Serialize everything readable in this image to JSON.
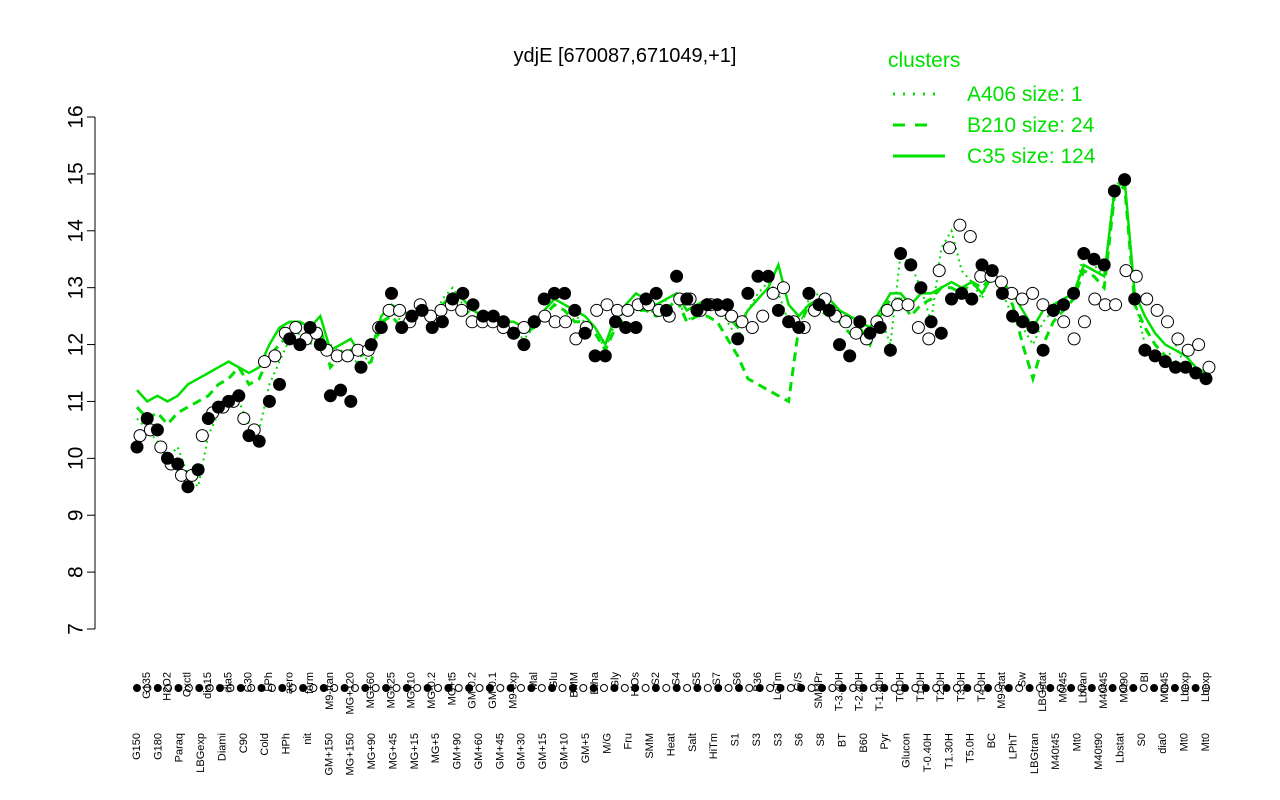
{
  "chart_data": {
    "type": "line",
    "title": "ydjE [670087,671049,+1]",
    "xlabel": "",
    "ylabel": "",
    "ylim": [
      7,
      16
    ],
    "y_ticks": [
      7,
      8,
      9,
      10,
      11,
      12,
      13,
      14,
      15,
      16
    ],
    "grid": false,
    "legend": {
      "title": "clusters",
      "placement": "top-right",
      "entries": [
        {
          "label": "A406 size: 1",
          "style": "dotted"
        },
        {
          "label": "B210 size: 24",
          "style": "dashed"
        },
        {
          "label": "C35 size: 124",
          "style": "solid"
        }
      ]
    },
    "x_labels_upper": [
      "G135",
      "H2O2",
      "Oxctl",
      "dia15",
      "dia5",
      "C30",
      "LPh",
      "aero",
      "ferm",
      "M9-tran",
      "MG+120",
      "MG+60",
      "MG+25",
      "MG+10",
      "MG-0.2",
      "MG+t5",
      "GM-0.2",
      "GM-0.1",
      "M9-exp",
      "Mal",
      "Glu",
      "BMM",
      "Etha",
      "Gly",
      "HiOs",
      "S2",
      "S4",
      "S5",
      "S7",
      "S6",
      "B36",
      "LoTm",
      "G/S",
      "SMMPr",
      "T-3.40H",
      "T-2.40H",
      "T-1.40H",
      "T0.0H",
      "T1.0H",
      "T2.0H",
      "T3.0H",
      "T4.0H",
      "M9-stat",
      "Sw",
      "LBGstat",
      "M0t45",
      "Lbtran",
      "M40t45",
      "M0t90",
      "BI",
      "M0t45",
      "Lbexp",
      "Lbexp"
    ],
    "x_labels_lower": [
      "G150",
      "G180",
      "Paraq",
      "LBGexp",
      "Diami",
      "C90",
      "Cold",
      "HPh",
      "nit",
      "GM+150",
      "MG+150",
      "MG+90",
      "MG+45",
      "MG+15",
      "MG+5",
      "GM+90",
      "GM+60",
      "GM+45",
      "GM+30",
      "GM+15",
      "GM+10",
      "GM+5",
      "M/G",
      "Fru",
      "SMM",
      "Heat",
      "Salt",
      "HiTm",
      "S1",
      "S3",
      "S3",
      "S6",
      "S8",
      "BT",
      "B60",
      "Pyr",
      "Glucon",
      "T-0.40H",
      "T1.30H",
      "T5.0H",
      "BC",
      "LPhT",
      "LBGtran",
      "M40t45",
      "Mt0",
      "M40t90",
      "Lbstat",
      "S0",
      "dia0",
      "Mt0",
      "Mt0"
    ],
    "series": [
      {
        "cluster": "A406",
        "style": "dotted",
        "values": [
          10.7,
          10.5,
          10.3,
          10.0,
          10.2,
          9.7,
          9.5,
          10.4,
          10.8,
          10.9,
          11.0,
          10.6,
          10.5,
          11.3,
          11.7,
          12.1,
          12.2,
          12.0,
          12.2,
          12.0,
          11.9,
          11.8,
          11.6,
          11.9,
          12.3,
          12.6,
          12.4,
          12.5,
          12.7,
          12.4,
          12.8,
          13.0,
          12.7,
          12.5,
          12.4,
          12.4,
          12.3,
          12.2,
          12.1,
          12.3,
          12.6,
          12.8,
          12.7,
          12.5,
          12.4,
          12.3,
          11.9,
          12.4,
          12.6,
          12.8,
          12.7,
          12.5,
          12.8,
          12.9,
          12.4,
          12.6,
          12.8,
          12.7,
          12.4,
          12.1,
          12.6,
          12.9,
          13.1,
          12.9,
          12.4,
          12.3,
          12.8,
          12.9,
          12.6,
          12.4,
          12.3,
          12.2,
          12.1,
          12.5,
          12.0,
          13.6,
          13.4,
          13.0,
          12.4,
          13.7,
          14.0,
          13.3,
          13.1,
          12.8,
          13.4,
          12.9,
          12.5,
          12.3,
          12.0,
          12.4,
          12.6,
          12.7,
          12.8,
          13.6,
          13.4,
          13.2,
          14.8,
          14.9,
          12.8,
          12.0,
          11.9,
          11.7,
          12.0,
          11.6,
          11.5,
          11.4
        ]
      },
      {
        "cluster": "B210",
        "style": "dashed",
        "values": [
          10.9,
          10.7,
          10.8,
          10.6,
          10.8,
          10.9,
          11.0,
          11.1,
          11.3,
          11.4,
          11.6,
          11.3,
          11.4,
          11.8,
          12.0,
          12.2,
          12.3,
          12.1,
          12.3,
          11.6,
          11.8,
          11.9,
          11.6,
          11.7,
          12.4,
          12.5,
          12.3,
          12.4,
          12.6,
          12.4,
          12.5,
          12.7,
          12.6,
          12.5,
          12.4,
          12.4,
          12.3,
          12.3,
          12.2,
          12.3,
          12.5,
          12.7,
          12.6,
          12.4,
          12.4,
          12.2,
          11.9,
          12.3,
          12.5,
          12.6,
          12.6,
          12.5,
          12.6,
          12.8,
          12.4,
          12.5,
          12.5,
          12.4,
          12.1,
          11.8,
          11.4,
          11.3,
          11.2,
          11.1,
          11.0,
          12.3,
          12.7,
          12.6,
          12.5,
          12.4,
          12.2,
          12.3,
          12.0,
          12.5,
          12.8,
          12.8,
          12.5,
          12.7,
          12.8,
          13.0,
          13.0,
          12.9,
          13.1,
          13.0,
          13.2,
          13.0,
          12.7,
          12.0,
          11.4,
          12.0,
          12.4,
          12.6,
          12.8,
          13.3,
          13.2,
          13.0,
          14.6,
          14.8,
          12.7,
          12.3,
          12.0,
          11.8,
          11.7,
          11.6,
          11.5,
          11.4
        ]
      },
      {
        "cluster": "C35",
        "style": "solid",
        "values": [
          11.2,
          11.0,
          11.1,
          11.0,
          11.1,
          11.3,
          11.4,
          11.5,
          11.6,
          11.7,
          11.6,
          11.5,
          11.6,
          12.0,
          12.3,
          12.4,
          12.4,
          12.3,
          12.5,
          11.9,
          12.0,
          12.1,
          11.8,
          11.9,
          12.5,
          12.7,
          12.6,
          12.5,
          12.7,
          12.5,
          12.7,
          12.9,
          12.8,
          12.6,
          12.5,
          12.5,
          12.4,
          12.4,
          12.3,
          12.4,
          12.6,
          12.8,
          12.7,
          12.6,
          12.5,
          12.3,
          12.0,
          12.5,
          12.7,
          12.9,
          12.8,
          12.7,
          12.8,
          12.9,
          12.6,
          12.7,
          12.8,
          12.7,
          12.5,
          12.3,
          12.6,
          12.8,
          13.0,
          13.4,
          12.7,
          12.5,
          12.7,
          12.8,
          12.8,
          12.6,
          12.5,
          12.4,
          12.3,
          12.6,
          12.9,
          12.9,
          12.7,
          12.9,
          12.9,
          13.0,
          13.1,
          13.0,
          13.1,
          12.9,
          13.2,
          13.1,
          12.9,
          12.6,
          12.3,
          12.6,
          12.7,
          12.8,
          12.9,
          13.4,
          13.3,
          13.2,
          14.7,
          14.9,
          12.9,
          12.5,
          12.2,
          12.0,
          11.9,
          11.8,
          11.6,
          11.5
        ]
      }
    ],
    "points": {
      "filled_first": [
        10.2,
        10.7,
        10.5,
        10.0,
        9.9,
        9.5,
        9.8,
        10.7,
        10.9,
        11.0,
        11.1,
        10.4,
        10.3,
        11.0,
        11.3,
        12.1,
        12.0,
        12.3,
        12.0,
        11.1,
        11.2,
        11.0,
        11.6,
        12.0,
        12.3,
        12.9,
        12.3,
        12.5,
        12.6,
        12.3,
        12.4,
        12.8,
        12.9,
        12.7,
        12.5,
        12.5,
        12.4,
        12.2,
        12.0,
        12.4,
        12.8,
        12.9,
        12.9,
        12.6,
        12.2,
        11.8,
        11.8,
        12.4,
        12.3,
        12.3,
        12.8,
        12.9,
        12.6,
        13.2,
        12.8,
        12.6,
        12.7,
        12.7,
        12.7,
        12.1,
        12.9,
        13.2,
        13.2,
        12.6,
        12.4,
        12.3,
        12.9,
        12.7,
        12.6,
        12.0,
        11.8,
        12.4,
        12.2,
        12.3,
        11.9,
        13.6,
        13.4,
        13.0,
        12.4,
        12.2,
        12.8,
        12.9,
        12.8,
        13.4,
        13.3,
        12.9,
        12.5,
        12.4,
        12.3,
        11.9,
        12.6,
        12.7,
        12.9,
        13.6,
        13.5,
        13.4,
        14.7,
        14.9,
        12.8,
        11.9,
        11.8,
        11.7,
        11.6,
        11.6,
        11.5,
        11.4
      ],
      "open_first": [
        10.4,
        10.5,
        10.2,
        9.9,
        9.7,
        9.7,
        10.4,
        10.8,
        10.9,
        11.0,
        10.7,
        10.5,
        11.7,
        11.8,
        12.2,
        12.3,
        12.1,
        12.2,
        11.9,
        11.8,
        11.8,
        11.9,
        11.9,
        12.3,
        12.6,
        12.6,
        12.4,
        12.7,
        12.5,
        12.6,
        12.7,
        12.6,
        12.4,
        12.4,
        12.4,
        12.3,
        12.2,
        12.3,
        12.4,
        12.5,
        12.4,
        12.4,
        12.1,
        12.3,
        12.6,
        12.7,
        12.6,
        12.6,
        12.7,
        12.7,
        12.6,
        12.5,
        12.8,
        12.8,
        12.6,
        12.7,
        12.6,
        12.5,
        12.4,
        12.3,
        12.5,
        12.9,
        13.0,
        12.4,
        12.3,
        12.6,
        12.8,
        12.5,
        12.4,
        12.2,
        12.1,
        12.4,
        12.6,
        12.7,
        12.7,
        12.3,
        12.1,
        13.3,
        13.7,
        14.1,
        13.9,
        13.2,
        13.2,
        13.1,
        12.9,
        12.8,
        12.9,
        12.7,
        12.6,
        12.4,
        12.1,
        12.4,
        12.8,
        12.7,
        12.7,
        13.3,
        13.2,
        12.8,
        12.6,
        12.4,
        12.1,
        11.9,
        12.0,
        11.6
      ]
    }
  }
}
